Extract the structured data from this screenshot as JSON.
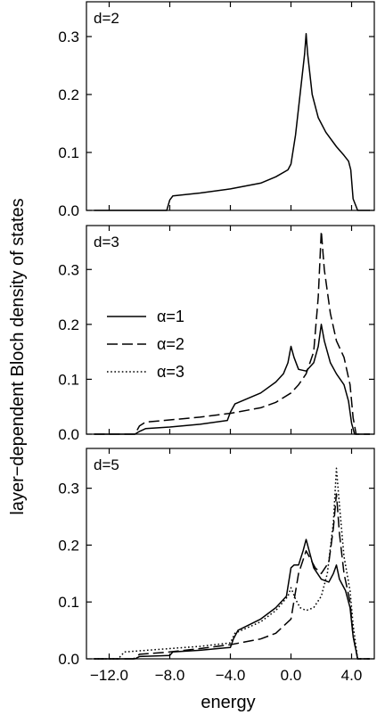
{
  "chart_data": {
    "type": "line",
    "ylabel": "layer−dependent  Bloch density of states",
    "xlabel": "energy",
    "xlim": [
      -13.5,
      5.5
    ],
    "xticks": [
      -12.0,
      -8.0,
      -4.0,
      0.0,
      4.0
    ],
    "xtick_labels": [
      "−12.0",
      "−8.0",
      "−4.0",
      "0.0",
      "4.0"
    ],
    "grid": false,
    "legend": {
      "placement": "middle-left of d=3 panel",
      "entries": [
        {
          "label": "α=1",
          "style": "solid"
        },
        {
          "label": "α=2",
          "style": "dashed"
        },
        {
          "label": "α=3",
          "style": "dotted"
        }
      ]
    },
    "panels": [
      {
        "label": "d=2",
        "ylim": [
          0,
          0.36
        ],
        "yticks": [
          0.0,
          0.1,
          0.2,
          0.3
        ],
        "ytick_labels": [
          "0.0",
          "0.1",
          "0.2",
          "0.3"
        ],
        "series": [
          {
            "name": "α=1",
            "style": "solid",
            "x": [
              -13.0,
              -8.2,
              -8.0,
              -7.8,
              -6.0,
              -4.0,
              -2.0,
              -1.0,
              -0.2,
              0.0,
              0.3,
              0.6,
              0.9,
              1.0,
              1.1,
              1.4,
              1.8,
              2.3,
              3.0,
              3.5,
              3.8,
              3.95,
              4.1,
              4.4,
              5.2
            ],
            "y": [
              0.0,
              0.0,
              0.018,
              0.025,
              0.03,
              0.037,
              0.047,
              0.058,
              0.07,
              0.08,
              0.13,
              0.2,
              0.27,
              0.305,
              0.27,
              0.2,
              0.16,
              0.135,
              0.11,
              0.095,
              0.085,
              0.07,
              0.02,
              0.0,
              0.0
            ]
          }
        ]
      },
      {
        "label": "d=3",
        "ylim": [
          0,
          0.38
        ],
        "yticks": [
          0.0,
          0.1,
          0.2,
          0.3
        ],
        "ytick_labels": [
          "0.0",
          "0.1",
          "0.2",
          "0.3"
        ],
        "series": [
          {
            "name": "α=1",
            "style": "solid",
            "x": [
              -13.0,
              -10.3,
              -10.0,
              -9.6,
              -8.0,
              -6.0,
              -4.2,
              -4.0,
              -3.7,
              -2.0,
              -1.0,
              -0.5,
              -0.2,
              0.0,
              0.2,
              0.5,
              1.0,
              1.5,
              1.8,
              2.0,
              2.2,
              2.6,
              3.0,
              3.5,
              3.8,
              4.0,
              4.2,
              5.2
            ],
            "y": [
              0.0,
              0.0,
              0.005,
              0.01,
              0.013,
              0.018,
              0.025,
              0.04,
              0.055,
              0.075,
              0.095,
              0.11,
              0.13,
              0.16,
              0.14,
              0.118,
              0.115,
              0.13,
              0.16,
              0.2,
              0.17,
              0.13,
              0.11,
              0.09,
              0.06,
              0.02,
              0.0,
              0.0
            ]
          },
          {
            "name": "α=2",
            "style": "dashed",
            "x": [
              -13.0,
              -10.3,
              -10.0,
              -9.6,
              -8.0,
              -6.0,
              -4.0,
              -2.0,
              -1.0,
              0.0,
              0.5,
              1.0,
              1.5,
              1.8,
              2.0,
              2.2,
              2.6,
              3.0,
              3.5,
              3.9,
              4.1,
              4.3,
              5.2
            ],
            "y": [
              0.0,
              0.0,
              0.015,
              0.022,
              0.026,
              0.031,
              0.038,
              0.048,
              0.058,
              0.075,
              0.09,
              0.11,
              0.15,
              0.25,
              0.37,
              0.3,
              0.22,
              0.17,
              0.14,
              0.09,
              0.03,
              0.0,
              0.0
            ]
          }
        ]
      },
      {
        "label": "d=5",
        "ylim": [
          0,
          0.37
        ],
        "yticks": [
          0.0,
          0.1,
          0.2,
          0.3
        ],
        "ytick_labels": [
          "0.0",
          "0.1",
          "0.2",
          "0.3"
        ],
        "series": [
          {
            "name": "α=1",
            "style": "solid",
            "x": [
              -13.0,
              -10.3,
              -10.0,
              -8.0,
              -7.8,
              -6.0,
              -4.0,
              -3.8,
              -3.5,
              -2.0,
              -1.0,
              -0.3,
              0.0,
              0.2,
              0.5,
              0.8,
              1.0,
              1.2,
              1.5,
              2.0,
              2.5,
              2.8,
              3.0,
              3.2,
              3.6,
              3.9,
              4.1,
              4.4,
              5.2
            ],
            "y": [
              0.0,
              0.0,
              0.004,
              0.006,
              0.012,
              0.015,
              0.02,
              0.035,
              0.05,
              0.07,
              0.09,
              0.11,
              0.16,
              0.165,
              0.165,
              0.19,
              0.21,
              0.19,
              0.16,
              0.14,
              0.135,
              0.15,
              0.165,
              0.14,
              0.12,
              0.09,
              0.04,
              0.0,
              0.0
            ]
          },
          {
            "name": "α=2",
            "style": "dashed",
            "x": [
              -13.0,
              -10.4,
              -10.0,
              -8.0,
              -6.0,
              -4.0,
              -2.0,
              -1.0,
              0.0,
              0.5,
              1.0,
              1.3,
              1.6,
              2.0,
              2.5,
              2.8,
              3.0,
              3.2,
              3.5,
              3.9,
              4.1,
              4.4,
              5.2
            ],
            "y": [
              0.0,
              0.0,
              0.008,
              0.012,
              0.018,
              0.025,
              0.035,
              0.045,
              0.07,
              0.15,
              0.19,
              0.175,
              0.16,
              0.15,
              0.17,
              0.23,
              0.29,
              0.22,
              0.15,
              0.1,
              0.04,
              0.0,
              0.0
            ]
          },
          {
            "name": "α=3",
            "style": "dotted",
            "x": [
              -13.0,
              -11.4,
              -11.0,
              -8.0,
              -6.0,
              -4.0,
              -3.7,
              -2.0,
              -1.0,
              -0.2,
              0.0,
              0.3,
              0.6,
              1.0,
              1.5,
              2.0,
              2.4,
              2.8,
              3.0,
              3.2,
              3.5,
              3.9,
              4.1,
              4.4,
              5.2
            ],
            "y": [
              0.0,
              0.0,
              0.012,
              0.018,
              0.022,
              0.028,
              0.045,
              0.065,
              0.085,
              0.11,
              0.125,
              0.105,
              0.09,
              0.085,
              0.09,
              0.11,
              0.15,
              0.24,
              0.335,
              0.27,
              0.18,
              0.12,
              0.06,
              0.0,
              0.0
            ]
          }
        ]
      }
    ]
  }
}
